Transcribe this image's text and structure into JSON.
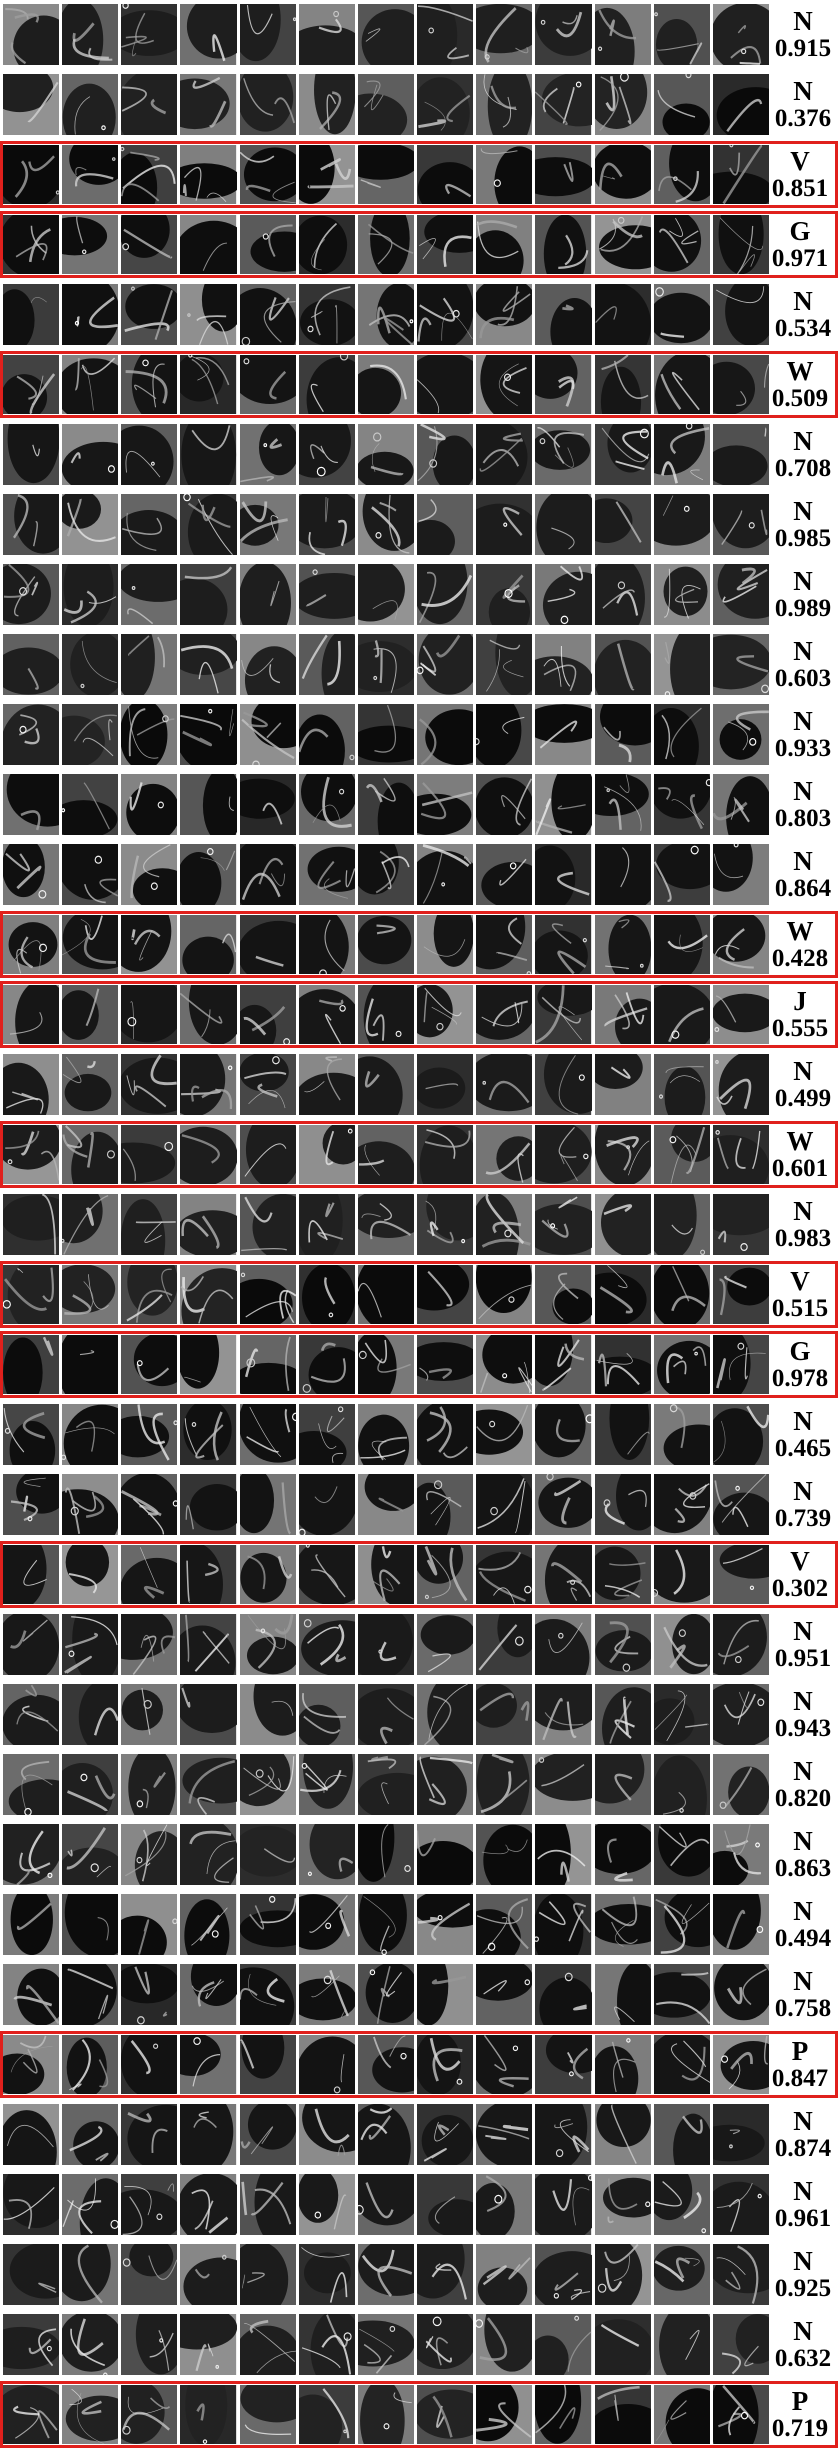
{
  "flag_color": "#e0201c",
  "tiles_per_row": 13,
  "rows": [
    {
      "label": "N",
      "score": "0.915",
      "flagged": false
    },
    {
      "label": "N",
      "score": "0.376",
      "flagged": false
    },
    {
      "label": "V",
      "score": "0.851",
      "flagged": true
    },
    {
      "label": "G",
      "score": "0.971",
      "flagged": true
    },
    {
      "label": "N",
      "score": "0.534",
      "flagged": false
    },
    {
      "label": "W",
      "score": "0.509",
      "flagged": true
    },
    {
      "label": "N",
      "score": "0.708",
      "flagged": false
    },
    {
      "label": "N",
      "score": "0.985",
      "flagged": false
    },
    {
      "label": "N",
      "score": "0.989",
      "flagged": false
    },
    {
      "label": "N",
      "score": "0.603",
      "flagged": false
    },
    {
      "label": "N",
      "score": "0.933",
      "flagged": false
    },
    {
      "label": "N",
      "score": "0.803",
      "flagged": false
    },
    {
      "label": "N",
      "score": "0.864",
      "flagged": false
    },
    {
      "label": "W",
      "score": "0.428",
      "flagged": true
    },
    {
      "label": "J",
      "score": "0.555",
      "flagged": true
    },
    {
      "label": "N",
      "score": "0.499",
      "flagged": false
    },
    {
      "label": "W",
      "score": "0.601",
      "flagged": true
    },
    {
      "label": "N",
      "score": "0.983",
      "flagged": false
    },
    {
      "label": "V",
      "score": "0.515",
      "flagged": true
    },
    {
      "label": "G",
      "score": "0.978",
      "flagged": true
    },
    {
      "label": "N",
      "score": "0.465",
      "flagged": false
    },
    {
      "label": "N",
      "score": "0.739",
      "flagged": false
    },
    {
      "label": "V",
      "score": "0.302",
      "flagged": true
    },
    {
      "label": "N",
      "score": "0.951",
      "flagged": false
    },
    {
      "label": "N",
      "score": "0.943",
      "flagged": false
    },
    {
      "label": "N",
      "score": "0.820",
      "flagged": false
    },
    {
      "label": "N",
      "score": "0.863",
      "flagged": false
    },
    {
      "label": "N",
      "score": "0.494",
      "flagged": false
    },
    {
      "label": "N",
      "score": "0.758",
      "flagged": false
    },
    {
      "label": "P",
      "score": "0.847",
      "flagged": true
    },
    {
      "label": "N",
      "score": "0.874",
      "flagged": false
    },
    {
      "label": "N",
      "score": "0.961",
      "flagged": false
    },
    {
      "label": "N",
      "score": "0.925",
      "flagged": false
    },
    {
      "label": "N",
      "score": "0.632",
      "flagged": false
    },
    {
      "label": "P",
      "score": "0.719",
      "flagged": true
    }
  ]
}
